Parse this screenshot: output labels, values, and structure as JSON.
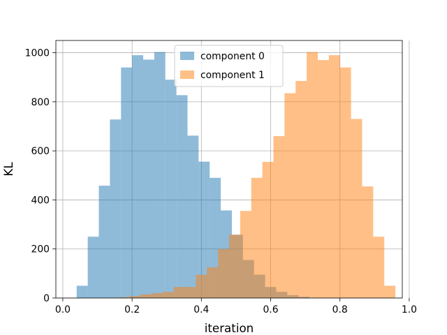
{
  "chart_data": {
    "type": "bar",
    "title": "",
    "xlabel": "iteration",
    "ylabel": "KL",
    "xlim": [
      -0.02,
      0.98
    ],
    "ylim": [
      0,
      1050
    ],
    "xticks": [
      0.0,
      0.2,
      0.4,
      0.6,
      0.8,
      1.0
    ],
    "xtick_labels": [
      "0.0",
      "0.2",
      "0.4",
      "0.6",
      "0.8",
      "1.0"
    ],
    "yticks": [
      0,
      200,
      400,
      600,
      800,
      1000
    ],
    "ytick_labels": [
      "0",
      "200",
      "400",
      "600",
      "800",
      "1000"
    ],
    "grid": true,
    "legend_position": "top-center",
    "series": [
      {
        "name": "component 0",
        "color": "#1f77b4",
        "alpha": 0.5,
        "bins": [
          {
            "x0": 0.04,
            "x1": 0.072,
            "value": 50
          },
          {
            "x0": 0.072,
            "x1": 0.104,
            "value": 250
          },
          {
            "x0": 0.104,
            "x1": 0.136,
            "value": 458
          },
          {
            "x0": 0.136,
            "x1": 0.168,
            "value": 728
          },
          {
            "x0": 0.168,
            "x1": 0.2,
            "value": 940
          },
          {
            "x0": 0.2,
            "x1": 0.232,
            "value": 990
          },
          {
            "x0": 0.232,
            "x1": 0.264,
            "value": 972
          },
          {
            "x0": 0.264,
            "x1": 0.296,
            "value": 1003
          },
          {
            "x0": 0.296,
            "x1": 0.328,
            "value": 890
          },
          {
            "x0": 0.328,
            "x1": 0.36,
            "value": 827
          },
          {
            "x0": 0.36,
            "x1": 0.392,
            "value": 662
          },
          {
            "x0": 0.392,
            "x1": 0.424,
            "value": 556
          },
          {
            "x0": 0.424,
            "x1": 0.456,
            "value": 490
          },
          {
            "x0": 0.456,
            "x1": 0.488,
            "value": 357
          },
          {
            "x0": 0.488,
            "x1": 0.52,
            "value": 258
          },
          {
            "x0": 0.52,
            "x1": 0.552,
            "value": 155
          },
          {
            "x0": 0.552,
            "x1": 0.584,
            "value": 95
          },
          {
            "x0": 0.584,
            "x1": 0.616,
            "value": 45
          },
          {
            "x0": 0.616,
            "x1": 0.648,
            "value": 25
          },
          {
            "x0": 0.648,
            "x1": 0.68,
            "value": 12
          },
          {
            "x0": 0.68,
            "x1": 0.712,
            "value": 5
          }
        ]
      },
      {
        "name": "component 1",
        "color": "#ff7f0e",
        "alpha": 0.5,
        "bins": [
          {
            "x0": 0.16,
            "x1": 0.192,
            "value": 3
          },
          {
            "x0": 0.192,
            "x1": 0.224,
            "value": 8
          },
          {
            "x0": 0.224,
            "x1": 0.256,
            "value": 15
          },
          {
            "x0": 0.256,
            "x1": 0.288,
            "value": 20
          },
          {
            "x0": 0.288,
            "x1": 0.32,
            "value": 25
          },
          {
            "x0": 0.32,
            "x1": 0.352,
            "value": 45
          },
          {
            "x0": 0.352,
            "x1": 0.384,
            "value": 45
          },
          {
            "x0": 0.384,
            "x1": 0.416,
            "value": 95
          },
          {
            "x0": 0.416,
            "x1": 0.448,
            "value": 125
          },
          {
            "x0": 0.448,
            "x1": 0.48,
            "value": 200
          },
          {
            "x0": 0.48,
            "x1": 0.512,
            "value": 258
          },
          {
            "x0": 0.512,
            "x1": 0.544,
            "value": 355
          },
          {
            "x0": 0.544,
            "x1": 0.576,
            "value": 490
          },
          {
            "x0": 0.576,
            "x1": 0.608,
            "value": 555
          },
          {
            "x0": 0.608,
            "x1": 0.64,
            "value": 660
          },
          {
            "x0": 0.64,
            "x1": 0.672,
            "value": 835
          },
          {
            "x0": 0.672,
            "x1": 0.704,
            "value": 885
          },
          {
            "x0": 0.704,
            "x1": 0.736,
            "value": 1003
          },
          {
            "x0": 0.736,
            "x1": 0.768,
            "value": 970
          },
          {
            "x0": 0.768,
            "x1": 0.8,
            "value": 990
          },
          {
            "x0": 0.8,
            "x1": 0.832,
            "value": 940
          },
          {
            "x0": 0.832,
            "x1": 0.864,
            "value": 730
          },
          {
            "x0": 0.864,
            "x1": 0.896,
            "value": 455
          },
          {
            "x0": 0.896,
            "x1": 0.928,
            "value": 250
          },
          {
            "x0": 0.928,
            "x1": 0.96,
            "value": 50
          }
        ]
      }
    ]
  }
}
